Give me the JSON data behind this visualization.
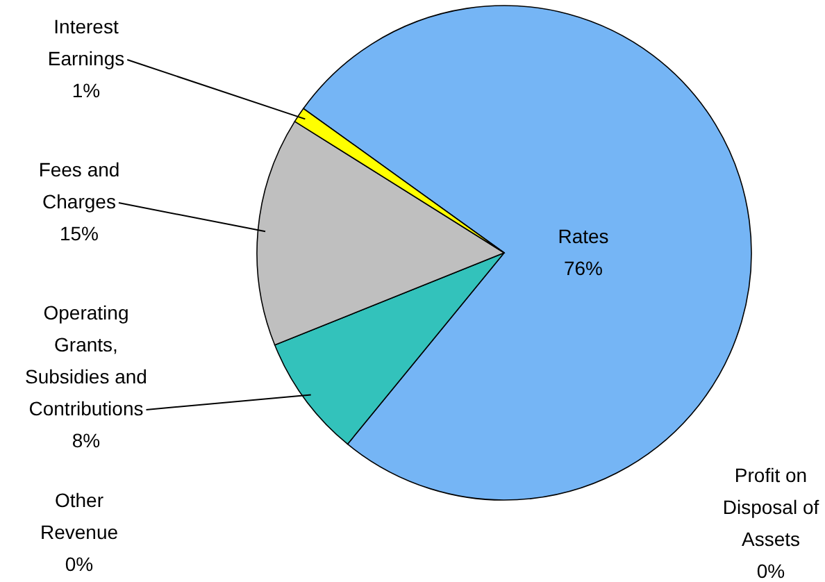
{
  "chart_data": {
    "type": "pie",
    "categories": [
      "Rates",
      "Profit on Disposal of Assets",
      "Other Revenue",
      "Operating Grants, Subsidies and Contributions",
      "Fees and Charges",
      "Interest Earnings"
    ],
    "values": [
      76,
      0,
      0,
      8,
      15,
      1
    ],
    "value_labels": [
      "76%",
      "0%",
      "0%",
      "8%",
      "15%",
      "1%"
    ],
    "colors": [
      "#75b5f5",
      "#4f81bd",
      "#c0504d",
      "#33c2bb",
      "#bfbfbf",
      "#ffff00"
    ]
  }
}
